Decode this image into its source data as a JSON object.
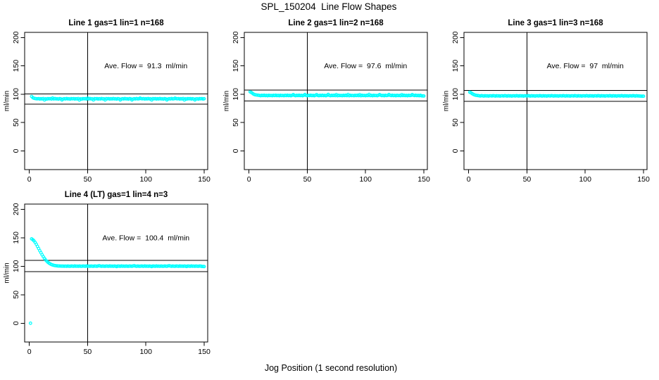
{
  "figure": {
    "title": "SPL_150204  Line Flow Shapes",
    "xlabel": "Jog Position (1 second resolution)",
    "background_color": "#ffffff",
    "point_color": "#00ffff",
    "line_color": "#000000"
  },
  "chart_data": [
    {
      "type": "scatter",
      "title": "Line 1 gas=1 lin=1 n=168",
      "annotation": "Ave. Flow =  91.3  ml/min",
      "ave_flow": 91.3,
      "ylabel": "ml/min",
      "x_ticks": [
        0,
        50,
        100,
        150
      ],
      "y_ticks": [
        0,
        50,
        100,
        150,
        200
      ],
      "xlim": [
        -4,
        153
      ],
      "ylim": [
        -33,
        209
      ],
      "vline_x": 50,
      "hlines": [
        100.4,
        82.2
      ],
      "x0": 2,
      "dx": 1,
      "y": [
        96.0,
        93.8,
        92.8,
        92.3,
        92.0,
        91.8,
        92.2,
        91.5,
        92.0,
        91.6,
        92.3,
        89.8,
        91.9,
        91.4,
        92.1,
        91.8,
        92.2,
        91.5,
        93.2,
        91.6,
        92.3,
        91.7,
        91.9,
        91.4,
        92.1,
        91.8,
        89.9,
        91.5,
        92.0,
        91.6,
        92.3,
        91.7,
        91.9,
        91.4,
        92.1,
        91.8,
        92.2,
        91.5,
        92.0,
        91.6,
        92.3,
        89.7,
        91.9,
        91.4,
        92.1,
        91.8,
        92.2,
        91.5,
        93.0,
        91.6,
        92.3,
        91.7,
        91.9,
        89.8,
        92.1,
        91.8,
        92.2,
        91.5,
        92.0,
        91.6,
        92.3,
        91.7,
        91.9,
        89.9,
        92.1,
        91.8,
        92.2,
        91.5,
        92.0,
        91.6,
        92.3,
        91.7,
        91.9,
        91.4,
        92.1,
        91.8,
        89.8,
        91.5,
        92.0,
        91.6,
        92.3,
        91.7,
        91.9,
        91.4,
        92.1,
        91.8,
        89.7,
        91.5,
        92.0,
        91.6,
        92.3,
        91.7,
        91.9,
        93.1,
        92.1,
        91.8,
        92.2,
        91.5,
        92.0,
        91.6,
        92.3,
        91.7,
        91.9,
        89.9,
        92.1,
        91.8,
        92.2,
        91.5,
        92.0,
        91.6,
        92.3,
        91.7,
        91.9,
        91.4,
        92.1,
        91.8,
        89.8,
        91.5,
        92.0,
        91.6,
        92.3,
        91.7,
        91.9,
        93.0,
        92.1,
        91.8,
        92.2,
        91.5,
        92.0,
        91.6,
        92.3,
        89.8,
        91.9,
        91.4,
        92.1,
        91.8,
        92.2,
        91.5,
        92.0,
        91.6,
        89.9,
        91.7,
        91.9,
        91.4,
        92.1,
        91.8,
        92.2,
        91.5,
        92.0
      ]
    },
    {
      "type": "scatter",
      "title": "Line 2 gas=1 lin=2 n=168",
      "annotation": "Ave. Flow =  97.6  ml/min",
      "ave_flow": 97.6,
      "ylabel": "ml/min",
      "x_ticks": [
        0,
        50,
        100,
        150
      ],
      "y_ticks": [
        0,
        50,
        100,
        150,
        200
      ],
      "xlim": [
        -4,
        153
      ],
      "ylim": [
        -33,
        209
      ],
      "vline_x": 50,
      "hlines": [
        107.4,
        87.8
      ],
      "x0": 1,
      "dx": 1,
      "y": [
        104.0,
        103.0,
        101.5,
        100.0,
        99.2,
        98.7,
        98.4,
        98.2,
        97.8,
        97.3,
        98.0,
        97.5,
        98.2,
        97.4,
        97.9,
        97.2,
        98.1,
        97.6,
        97.8,
        97.3,
        98.0,
        97.5,
        98.2,
        97.4,
        97.9,
        97.2,
        98.1,
        97.6,
        97.8,
        97.3,
        98.0,
        97.5,
        98.2,
        97.4,
        97.9,
        97.2,
        98.1,
        99.3,
        97.8,
        97.3,
        98.0,
        97.5,
        98.2,
        97.4,
        97.9,
        97.2,
        98.1,
        99.4,
        97.8,
        97.3,
        98.0,
        97.5,
        98.2,
        97.4,
        97.9,
        97.2,
        98.1,
        99.2,
        97.8,
        97.3,
        98.0,
        97.5,
        98.2,
        97.4,
        97.9,
        97.2,
        98.1,
        99.5,
        97.8,
        97.3,
        98.0,
        97.5,
        98.2,
        97.4,
        99.3,
        97.2,
        98.1,
        97.6,
        97.8,
        97.3,
        98.0,
        97.5,
        98.2,
        97.4,
        99.4,
        97.2,
        98.1,
        97.6,
        97.8,
        97.3,
        98.0,
        97.5,
        98.2,
        97.4,
        99.2,
        97.2,
        98.1,
        97.6,
        97.8,
        97.3,
        98.0,
        97.5,
        99.5,
        97.4,
        97.9,
        97.2,
        98.1,
        97.6,
        97.8,
        97.3,
        98.0,
        99.3,
        98.2,
        97.4,
        97.9,
        97.2,
        98.1,
        97.6,
        97.8,
        99.4,
        98.0,
        97.5,
        98.2,
        97.4,
        97.9,
        97.2,
        98.1,
        97.6,
        97.8,
        97.3,
        99.2,
        97.5,
        98.2,
        97.4,
        97.9,
        97.2,
        98.1,
        97.6,
        97.8,
        99.3,
        98.0,
        97.5,
        98.2,
        97.4,
        97.9,
        97.2,
        98.1,
        97.0,
        96.9,
        96.8
      ]
    },
    {
      "type": "scatter",
      "title": "Line 3 gas=1 lin=3 n=168",
      "annotation": "Ave. Flow =  97  ml/min",
      "ave_flow": 97,
      "ylabel": "ml/min",
      "x_ticks": [
        0,
        50,
        100,
        150
      ],
      "y_ticks": [
        0,
        50,
        100,
        150,
        200
      ],
      "xlim": [
        -4,
        153
      ],
      "ylim": [
        -33,
        209
      ],
      "vline_x": 50,
      "hlines": [
        106.7,
        87.3
      ],
      "x0": 1,
      "dx": 1,
      "y": [
        103.5,
        102.5,
        101.0,
        99.8,
        98.8,
        98.2,
        97.8,
        97.5,
        97.2,
        96.8,
        97.4,
        97.0,
        96.7,
        97.3,
        96.9,
        97.1,
        96.6,
        97.2,
        97.2,
        96.8,
        97.4,
        97.0,
        96.7,
        97.3,
        96.9,
        97.1,
        96.6,
        97.2,
        97.2,
        96.8,
        97.4,
        97.0,
        96.7,
        97.3,
        96.9,
        97.1,
        96.6,
        97.2,
        97.2,
        96.8,
        97.4,
        97.0,
        96.7,
        97.3,
        96.9,
        97.1,
        96.6,
        97.2,
        97.2,
        96.8,
        97.4,
        97.0,
        96.7,
        97.3,
        96.9,
        97.1,
        96.6,
        97.2,
        97.2,
        96.8,
        97.4,
        97.0,
        96.7,
        97.3,
        96.9,
        97.1,
        96.6,
        97.2,
        97.2,
        96.8,
        97.4,
        97.0,
        96.7,
        97.3,
        96.9,
        97.1,
        96.6,
        97.2,
        97.2,
        96.8,
        97.4,
        97.0,
        96.7,
        97.3,
        96.9,
        97.1,
        96.6,
        97.2,
        97.2,
        96.8,
        97.4,
        97.0,
        96.7,
        97.3,
        96.9,
        97.1,
        96.6,
        97.2,
        97.2,
        96.8,
        97.4,
        97.0,
        96.7,
        97.3,
        96.9,
        97.1,
        96.6,
        97.2,
        97.2,
        96.8,
        97.4,
        97.0,
        96.7,
        97.3,
        96.9,
        97.1,
        96.6,
        97.2,
        97.2,
        96.8,
        97.4,
        97.0,
        96.7,
        97.3,
        96.9,
        97.1,
        96.6,
        97.2,
        97.2,
        96.8,
        97.4,
        97.0,
        96.7,
        97.3,
        96.9,
        97.1,
        96.6,
        97.2,
        97.2,
        96.8,
        97.4,
        97.0,
        96.7,
        97.3,
        96.9,
        96.8,
        96.7,
        96.6,
        96.5,
        96.4
      ]
    },
    {
      "type": "scatter",
      "title": "Line 4 (LT) gas=1 lin=4 n=3",
      "annotation": "Ave. Flow =  100.4  ml/min",
      "ave_flow": 100.4,
      "ylabel": "ml/min",
      "x_ticks": [
        0,
        50,
        100,
        150
      ],
      "y_ticks": [
        0,
        50,
        100,
        150,
        200
      ],
      "xlim": [
        -4,
        153
      ],
      "ylim": [
        -33,
        209
      ],
      "vline_x": 50,
      "hlines": [
        110.4,
        90.4
      ],
      "x0": 1,
      "dx": 1,
      "y": [
        0,
        148,
        146.5,
        144.5,
        141.8,
        138.5,
        134.8,
        131.0,
        127.2,
        123.5,
        120.0,
        116.7,
        113.7,
        111.0,
        108.7,
        106.8,
        105.2,
        104.0,
        103.0,
        102.2,
        101.6,
        101.1,
        100.8,
        100.6,
        100.4,
        100.3,
        100.2,
        100.1,
        100.1,
        100.0,
        100.2,
        99.9,
        100.4,
        100.0,
        99.8,
        100.3,
        100.1,
        99.9,
        100.5,
        100.0,
        100.2,
        99.9,
        100.4,
        100.0,
        99.8,
        100.3,
        100.1,
        99.9,
        100.5,
        100.0,
        100.2,
        99.9,
        100.4,
        100.0,
        99.8,
        100.3,
        100.1,
        99.9,
        100.5,
        100.8,
        100.2,
        99.9,
        100.4,
        100.0,
        99.8,
        100.3,
        100.1,
        99.9,
        100.5,
        100.0,
        100.2,
        99.9,
        100.4,
        100.0,
        99.4,
        100.3,
        100.1,
        99.9,
        100.5,
        100.0,
        100.2,
        99.9,
        100.4,
        100.0,
        99.8,
        100.3,
        100.1,
        99.9,
        100.5,
        100.7,
        100.2,
        99.9,
        100.4,
        100.0,
        99.8,
        100.3,
        100.1,
        99.9,
        100.5,
        100.0,
        100.2,
        99.9,
        100.4,
        100.0,
        99.4,
        100.3,
        100.1,
        99.9,
        100.5,
        100.0,
        100.2,
        99.9,
        100.4,
        100.0,
        99.8,
        100.3,
        100.1,
        99.9,
        100.5,
        100.8,
        100.2,
        99.9,
        100.4,
        100.0,
        99.8,
        100.3,
        100.1,
        99.9,
        100.5,
        100.0,
        100.2,
        99.9,
        100.4,
        100.0,
        99.5,
        100.3,
        100.1,
        99.9,
        100.5,
        100.0,
        100.2,
        99.9,
        100.4,
        100.0,
        99.8,
        100.3,
        100.1,
        99.6,
        99.5,
        99.4
      ]
    }
  ]
}
